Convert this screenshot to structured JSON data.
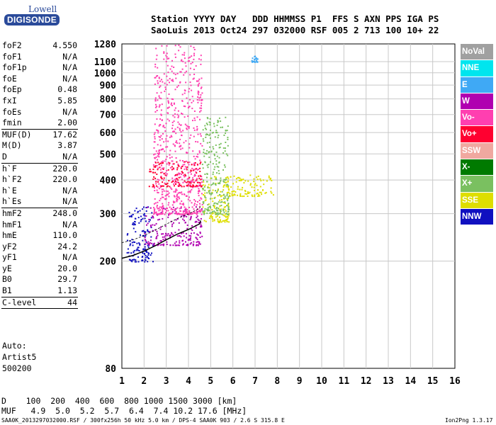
{
  "logo": {
    "top": "Lowell",
    "bottom": "DIGISONDE"
  },
  "header": {
    "line1": "Station YYYY DAY   DDD HHMMSS P1  FFS S AXN PPS IGA PS",
    "line2": "SaoLuis 2013 Oct24 297 032000 RSF 005 2 713 100 10+ 22"
  },
  "params": [
    {
      "name": "foF2",
      "value": "4.550"
    },
    {
      "name": "foF1",
      "value": "N/A"
    },
    {
      "name": "foF1p",
      "value": "N/A"
    },
    {
      "name": "foE",
      "value": "N/A"
    },
    {
      "name": "foEp",
      "value": "0.48"
    },
    {
      "name": "fxI",
      "value": "5.85"
    },
    {
      "name": "foEs",
      "value": "N/A"
    },
    {
      "name": "fmin",
      "value": "2.00"
    },
    {
      "name": "MUF(D)",
      "value": "17.62"
    },
    {
      "name": "M(D)",
      "value": "3.87"
    },
    {
      "name": "D",
      "value": "N/A"
    },
    {
      "name": "h`F",
      "value": "220.0"
    },
    {
      "name": "h`F2",
      "value": "220.0"
    },
    {
      "name": "h`E",
      "value": "N/A"
    },
    {
      "name": "h`Es",
      "value": "N/A"
    },
    {
      "name": "hmF2",
      "value": "248.0"
    },
    {
      "name": "hmF1",
      "value": "N/A"
    },
    {
      "name": "hmE",
      "value": "110.0"
    },
    {
      "name": "yF2",
      "value": "24.2"
    },
    {
      "name": "yF1",
      "value": "N/A"
    },
    {
      "name": "yE",
      "value": "20.0"
    },
    {
      "name": "B0",
      "value": "29.7"
    },
    {
      "name": "B1",
      "value": "1.13"
    },
    {
      "name": "C-level",
      "value": "44"
    }
  ],
  "auto": {
    "label": "Auto:",
    "software": "Artist5",
    "version": "500200"
  },
  "legend": [
    {
      "label": "NoVal",
      "color": "#a0a0a0"
    },
    {
      "label": "NNE",
      "color": "#00e5ee"
    },
    {
      "label": "E",
      "color": "#3fa9f5"
    },
    {
      "label": "W",
      "color": "#b000b0"
    },
    {
      "label": "Vo-",
      "color": "#ff3fb0"
    },
    {
      "label": "Vo+",
      "color": "#ff0030"
    },
    {
      "label": "SSW",
      "color": "#f0a8a0"
    },
    {
      "label": "X-",
      "color": "#007a00"
    },
    {
      "label": "X+",
      "color": "#7ac060"
    },
    {
      "label": "SSE",
      "color": "#dede00"
    },
    {
      "label": "NNW",
      "color": "#1010c0"
    }
  ],
  "dtable": {
    "row1": "D    100  200  400  600  800 1000 1500 3000 [km]",
    "row2": "MUF   4.9  5.0  5.2  5.7  6.4  7.4 10.2 17.6 [MHz]"
  },
  "footer": {
    "left": "SAA0K_2013297032000.RSF / 300fx256h 50 kHz 5.0 km / DPS-4 SAA0K 903 / 2.6 S 315.8 E",
    "right": "Ion2Png 1.3.17"
  },
  "chart_data": {
    "type": "scatter",
    "xlim": [
      1,
      16
    ],
    "ylim": [
      80,
      1280
    ],
    "y_scale": "log",
    "xticks": [
      1,
      2,
      3,
      4,
      5,
      6,
      7,
      8,
      9,
      10,
      11,
      12,
      13,
      14,
      15,
      16
    ],
    "yticks": [
      80,
      200,
      300,
      400,
      500,
      600,
      700,
      800,
      900,
      1000,
      1100,
      1280
    ],
    "grid": true,
    "xlabel": "",
    "ylabel": "",
    "trace_label": "NNW",
    "trace": [
      [
        1.0,
        205
      ],
      [
        1.5,
        210
      ],
      [
        2.0,
        218
      ],
      [
        2.5,
        228
      ],
      [
        3.0,
        240
      ],
      [
        3.5,
        252
      ],
      [
        4.0,
        262
      ],
      [
        4.5,
        275
      ],
      [
        4.55,
        283
      ]
    ],
    "echo_regions": [
      {
        "x": [
          1.2,
          2.4
        ],
        "y": [
          200,
          320
        ],
        "color": "NNW"
      },
      {
        "x": [
          2.0,
          4.6
        ],
        "y": [
          230,
          320
        ],
        "color": "W"
      },
      {
        "x": [
          2.4,
          4.6
        ],
        "y": [
          300,
          1280
        ],
        "color": "Vo-"
      },
      {
        "x": [
          2.2,
          4.6
        ],
        "y": [
          380,
          470
        ],
        "color": "Vo+"
      },
      {
        "x": [
          4.6,
          5.8
        ],
        "y": [
          280,
          420
        ],
        "color": "SSE"
      },
      {
        "x": [
          4.6,
          5.8
        ],
        "y": [
          300,
          690
        ],
        "color": "X+"
      },
      {
        "x": [
          5.6,
          7.8
        ],
        "y": [
          350,
          420
        ],
        "color": "SSE"
      },
      {
        "x": [
          6.8,
          7.1
        ],
        "y": [
          1100,
          1160
        ],
        "color": "E"
      }
    ]
  }
}
